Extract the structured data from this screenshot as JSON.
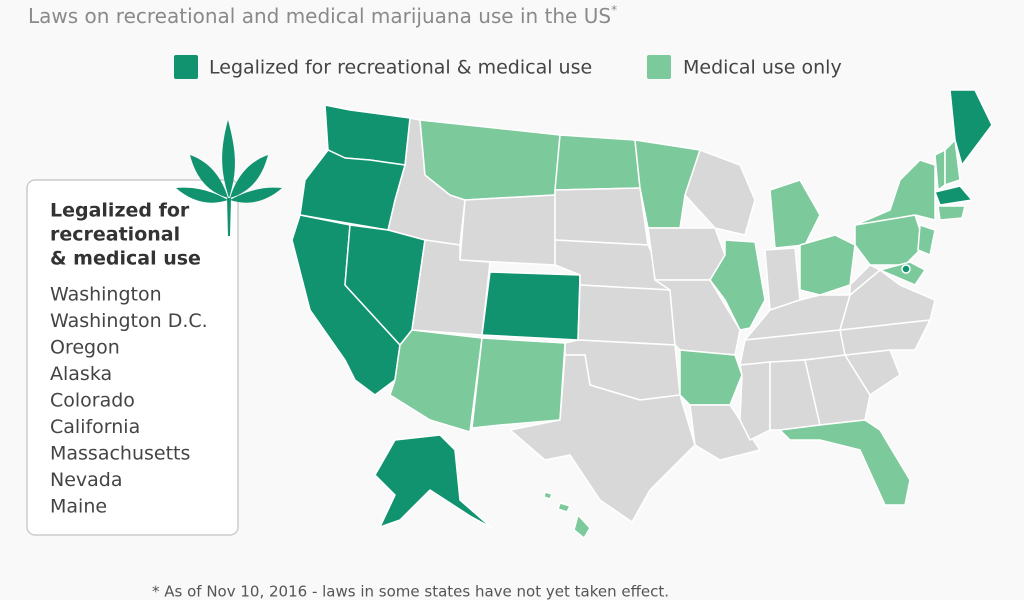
{
  "subtitle": {
    "text": "Laws on recreational and medical marijuana use in the US",
    "marker": "*"
  },
  "legend": [
    {
      "label": "Legalized for recreational & medical use",
      "color": "#11936f"
    },
    {
      "label": "Medical use only",
      "color": "#7cc99b"
    }
  ],
  "states_box": {
    "title": [
      "Legalized for",
      "recreational",
      "& medical use"
    ],
    "states": [
      "Washington",
      "Washington D.C.",
      "Oregon",
      "Alaska",
      "Colorado",
      "California",
      "Massachusetts",
      "Nevada",
      "Maine"
    ]
  },
  "footnote": "* As  of Nov 10, 2016 - laws in some states have not yet taken effect."
}
